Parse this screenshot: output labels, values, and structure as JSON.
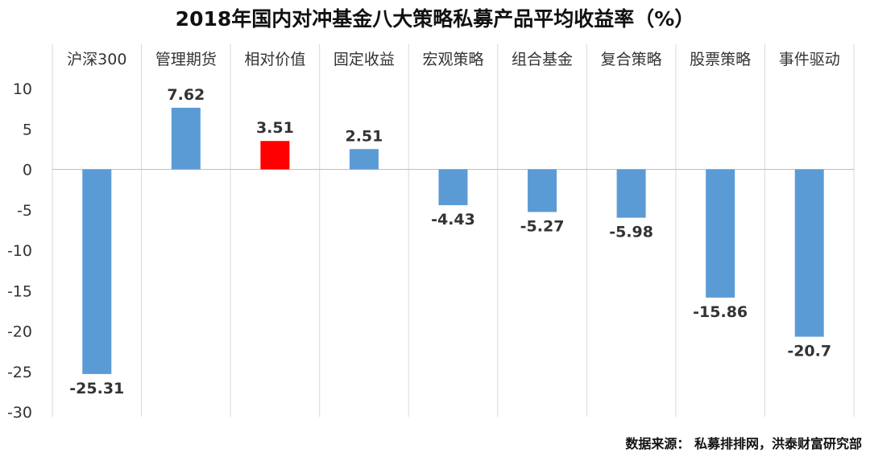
{
  "chart_data": {
    "type": "bar",
    "title": "2018年国内对冲基金八大策略私募产品平均收益率（%）",
    "categories": [
      "沪深300",
      "管理期货",
      "相对价值",
      "固定收益",
      "宏观策略",
      "组合基金",
      "复合策略",
      "股票策略",
      "事件驱动"
    ],
    "values": [
      -25.31,
      7.62,
      3.51,
      2.51,
      -4.43,
      -5.27,
      -5.98,
      -15.86,
      -20.7
    ],
    "value_labels": [
      "-25.31",
      "7.62",
      "3.51",
      "2.51",
      "-4.43",
      "-5.27",
      "-5.98",
      "-15.86",
      "-20.7"
    ],
    "ylim": [
      -30,
      10
    ],
    "yticks": [
      10,
      5,
      0,
      -5,
      -10,
      -15,
      -20,
      -25,
      -30
    ],
    "ytick_labels": [
      "10",
      "5",
      "0",
      "-5",
      "-10",
      "-15",
      "-20",
      "-25",
      "-30"
    ],
    "xlabel": "",
    "ylabel": "",
    "category_axis_position": "top",
    "grid": "vertical separators between categories",
    "legend": "none",
    "colors": {
      "default": "#5B9BD5",
      "highlight": "#FF0000"
    },
    "highlight_index": 2
  },
  "source": "数据来源： 私募排排网，洪泰财富研究部"
}
